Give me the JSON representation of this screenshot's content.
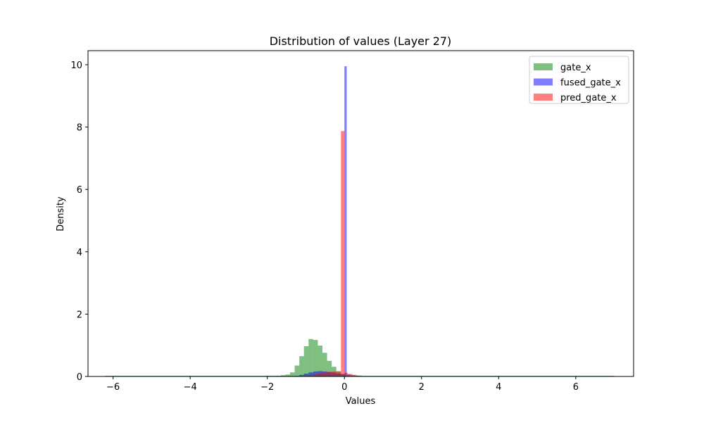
{
  "chart_data": {
    "type": "bar",
    "title": "Distribution of values (Layer 27)",
    "xlabel": "Values",
    "ylabel": "Density",
    "xlim": [
      -6.65,
      7.5
    ],
    "ylim": [
      0,
      10.45
    ],
    "xticks": [
      -6,
      -4,
      -2,
      0,
      2,
      4,
      6
    ],
    "xtick_labels": [
      "−6",
      "−4",
      "−2",
      "0",
      "2",
      "4",
      "6"
    ],
    "yticks": [
      0,
      2,
      4,
      6,
      8,
      10
    ],
    "ytick_labels": [
      "0",
      "2",
      "4",
      "6",
      "8",
      "10"
    ],
    "grid": false,
    "legend_position": "top-right",
    "series": [
      {
        "name": "gate_x",
        "color": "#008000",
        "opacity": 0.5,
        "bins": [
          {
            "x0": -2.25,
            "x1": -2.13,
            "y": 0.01
          },
          {
            "x0": -2.13,
            "x1": -2.01,
            "y": 0.01
          },
          {
            "x0": -2.01,
            "x1": -1.89,
            "y": 0.02
          },
          {
            "x0": -1.89,
            "x1": -1.77,
            "y": 0.01
          },
          {
            "x0": -1.77,
            "x1": -1.65,
            "y": 0.02
          },
          {
            "x0": -1.65,
            "x1": -1.53,
            "y": 0.04
          },
          {
            "x0": -1.53,
            "x1": -1.41,
            "y": 0.06
          },
          {
            "x0": -1.41,
            "x1": -1.29,
            "y": 0.13
          },
          {
            "x0": -1.29,
            "x1": -1.17,
            "y": 0.35
          },
          {
            "x0": -1.17,
            "x1": -1.05,
            "y": 0.65
          },
          {
            "x0": -1.05,
            "x1": -0.93,
            "y": 0.97
          },
          {
            "x0": -0.93,
            "x1": -0.81,
            "y": 1.2
          },
          {
            "x0": -0.81,
            "x1": -0.69,
            "y": 1.17
          },
          {
            "x0": -0.69,
            "x1": -0.57,
            "y": 0.99
          },
          {
            "x0": -0.57,
            "x1": -0.45,
            "y": 0.76
          },
          {
            "x0": -0.45,
            "x1": -0.33,
            "y": 0.5
          },
          {
            "x0": -0.33,
            "x1": -0.21,
            "y": 0.31
          },
          {
            "x0": -0.21,
            "x1": -0.09,
            "y": 0.17
          },
          {
            "x0": -0.09,
            "x1": 0.03,
            "y": 0.08
          },
          {
            "x0": 0.03,
            "x1": 0.15,
            "y": 0.03
          },
          {
            "x0": 0.15,
            "x1": 0.27,
            "y": 0.01
          }
        ]
      },
      {
        "name": "fused_gate_x",
        "color": "#0000ff",
        "opacity": 0.5,
        "bins": [
          {
            "x0": -1.41,
            "x1": -1.29,
            "y": 0.01
          },
          {
            "x0": -1.29,
            "x1": -1.17,
            "y": 0.02
          },
          {
            "x0": -1.17,
            "x1": -1.05,
            "y": 0.05
          },
          {
            "x0": -1.05,
            "x1": -0.93,
            "y": 0.09
          },
          {
            "x0": -0.93,
            "x1": -0.81,
            "y": 0.13
          },
          {
            "x0": -0.81,
            "x1": -0.69,
            "y": 0.16
          },
          {
            "x0": -0.69,
            "x1": -0.57,
            "y": 0.17
          },
          {
            "x0": -0.57,
            "x1": -0.45,
            "y": 0.16
          },
          {
            "x0": -0.45,
            "x1": -0.33,
            "y": 0.14
          },
          {
            "x0": -0.33,
            "x1": -0.21,
            "y": 0.12
          },
          {
            "x0": -0.21,
            "x1": -0.09,
            "y": 0.09
          },
          {
            "x0": -0.09,
            "x1": 0.0,
            "y": 0.07
          },
          {
            "x0": 0.0,
            "x1": 0.06,
            "y": 9.95
          },
          {
            "x0": 0.06,
            "x1": 0.15,
            "y": 0.06
          },
          {
            "x0": 0.15,
            "x1": 0.27,
            "y": 0.04
          },
          {
            "x0": 0.27,
            "x1": 0.39,
            "y": 0.02
          },
          {
            "x0": 0.39,
            "x1": 0.51,
            "y": 0.01
          }
        ]
      },
      {
        "name": "pred_gate_x",
        "color": "#ff0000",
        "opacity": 0.5,
        "bins": [
          {
            "x0": -1.05,
            "x1": -0.93,
            "y": 0.02
          },
          {
            "x0": -0.93,
            "x1": -0.81,
            "y": 0.04
          },
          {
            "x0": -0.81,
            "x1": -0.69,
            "y": 0.07
          },
          {
            "x0": -0.69,
            "x1": -0.57,
            "y": 0.1
          },
          {
            "x0": -0.57,
            "x1": -0.45,
            "y": 0.13
          },
          {
            "x0": -0.45,
            "x1": -0.33,
            "y": 0.15
          },
          {
            "x0": -0.33,
            "x1": -0.21,
            "y": 0.16
          },
          {
            "x0": -0.21,
            "x1": -0.09,
            "y": 0.15
          },
          {
            "x0": -0.09,
            "x1": 0.0,
            "y": 7.87
          },
          {
            "x0": 0.0,
            "x1": 0.09,
            "y": 0.12
          },
          {
            "x0": 0.09,
            "x1": 0.21,
            "y": 0.08
          },
          {
            "x0": 0.21,
            "x1": 0.33,
            "y": 0.05
          },
          {
            "x0": 0.33,
            "x1": 0.45,
            "y": 0.03
          },
          {
            "x0": 0.45,
            "x1": 0.57,
            "y": 0.01
          }
        ]
      }
    ],
    "baseline_extent": [
      -6.2,
      7.0
    ]
  }
}
